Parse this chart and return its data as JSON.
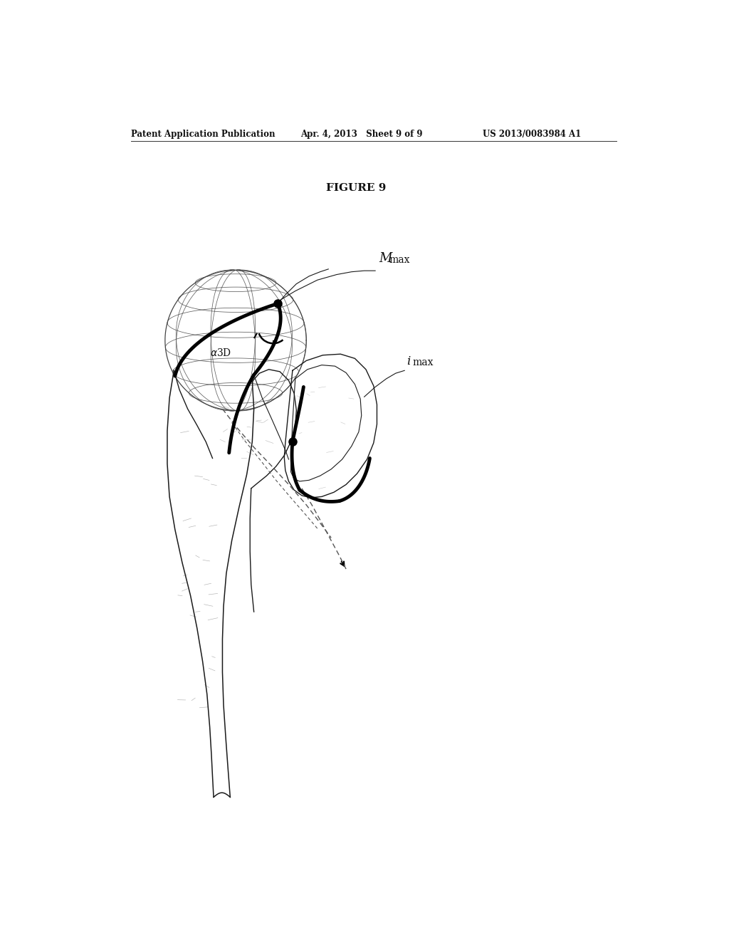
{
  "title": "FIGURE 9",
  "header_left": "Patent Application Publication",
  "header_center": "Apr. 4, 2013   Sheet 9 of 9",
  "header_right": "US 2013/0083984 A1",
  "bg_color": "#ffffff",
  "line_color": "#1a1a1a",
  "thin_line_color": "#444444",
  "dashed_line_color": "#555555",
  "bold_line_color": "#000000",
  "figure_width": 10.24,
  "figure_height": 13.2,
  "dpi": 100
}
